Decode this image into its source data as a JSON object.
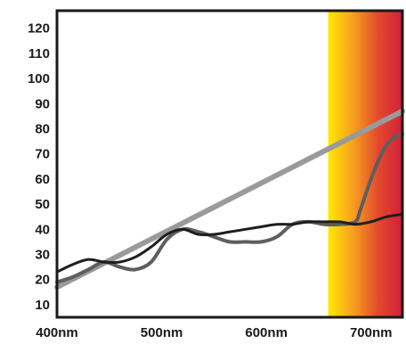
{
  "chart_data": {
    "type": "line",
    "title": "",
    "xlabel": "",
    "ylabel": "",
    "xlim": [
      400,
      730
    ],
    "ylim": [
      5,
      127
    ],
    "x_ticks": [
      {
        "value": 400,
        "label": "400nm"
      },
      {
        "value": 500,
        "label": "500nm"
      },
      {
        "value": 600,
        "label": "600nm"
      },
      {
        "value": 700,
        "label": "700nm"
      }
    ],
    "y_ticks": [
      10,
      20,
      30,
      40,
      50,
      60,
      70,
      80,
      90,
      100,
      110,
      120
    ],
    "grid": false,
    "legend": "none",
    "background_band": {
      "x_start": 659,
      "x_end": 730,
      "colors": [
        "#ffe800",
        "#f7a020",
        "#e24a2c",
        "#d21f3c"
      ]
    },
    "series": [
      {
        "color": "#9a9a9a",
        "x": [
          400,
          730
        ],
        "y": [
          17,
          87
        ]
      },
      {
        "color": "#5e5e5e",
        "x": [
          400,
          415,
          430,
          445,
          460,
          475,
          490,
          505,
          520,
          535,
          550,
          565,
          580,
          595,
          610,
          625,
          640,
          655,
          670,
          685,
          690,
          700,
          710,
          720,
          730
        ],
        "y": [
          19,
          21,
          24,
          27,
          25,
          24,
          27,
          36,
          40,
          39,
          37,
          35,
          35,
          35,
          37,
          42,
          43,
          42,
          42,
          43,
          48,
          60,
          70,
          76,
          78
        ]
      },
      {
        "color": "#1e1e1e",
        "x": [
          400,
          415,
          430,
          445,
          460,
          475,
          490,
          505,
          520,
          535,
          550,
          565,
          580,
          595,
          610,
          625,
          640,
          655,
          670,
          685,
          700,
          715,
          730
        ],
        "y": [
          23,
          26,
          28,
          27,
          27,
          29,
          33,
          38,
          40,
          38,
          38,
          39,
          40,
          41,
          42,
          42,
          43,
          43,
          43,
          42,
          43,
          45,
          46
        ]
      }
    ]
  }
}
